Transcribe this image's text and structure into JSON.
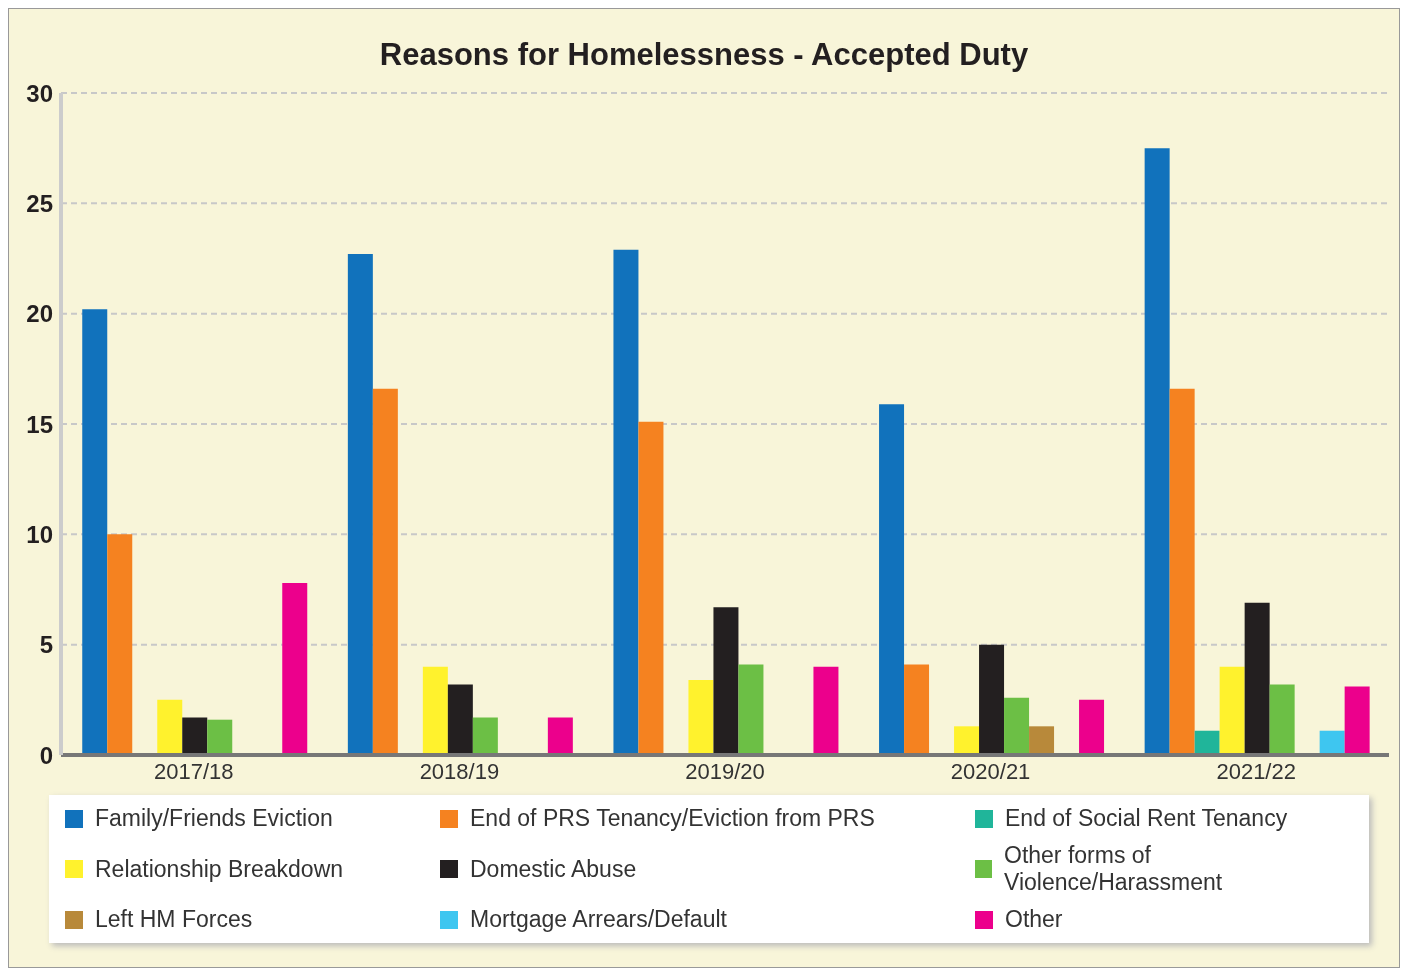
{
  "chart_data": {
    "type": "bar",
    "title": "Reasons for Homelessness - Accepted Duty",
    "categories": [
      "2017/18",
      "2018/19",
      "2019/20",
      "2020/21",
      "2021/22"
    ],
    "series": [
      {
        "name": "Family/Friends Eviction",
        "color": "#1172bc",
        "values": [
          20.2,
          22.7,
          22.9,
          15.9,
          27.5
        ]
      },
      {
        "name": "End of PRS Tenancy/Eviction from PRS",
        "color": "#f58220",
        "values": [
          10.0,
          16.6,
          15.1,
          4.1,
          16.6
        ]
      },
      {
        "name": "End of Social Rent Tenancy",
        "color": "#20b59a",
        "values": [
          null,
          null,
          null,
          null,
          1.1
        ]
      },
      {
        "name": "Relationship Breakdown",
        "color": "#fff22d",
        "values": [
          2.5,
          4.0,
          3.4,
          1.3,
          4.0
        ]
      },
      {
        "name": "Domestic Abuse",
        "color": "#231f20",
        "values": [
          1.7,
          3.2,
          6.7,
          5.0,
          6.9
        ]
      },
      {
        "name": "Other forms of Violence/Harassment",
        "color": "#6cbf45",
        "values": [
          1.6,
          1.7,
          4.1,
          2.6,
          3.2
        ]
      },
      {
        "name": "Left HM Forces",
        "color": "#b8893a",
        "values": [
          null,
          null,
          null,
          1.3,
          null
        ]
      },
      {
        "name": "Mortgage Arrears/Default",
        "color": "#3ec6f0",
        "values": [
          null,
          null,
          null,
          null,
          1.1
        ]
      },
      {
        "name": "Other",
        "color": "#ec008c",
        "values": [
          7.8,
          1.7,
          4.0,
          2.5,
          3.1
        ]
      }
    ],
    "ylim": [
      0,
      30
    ],
    "yticks": [
      0,
      5,
      10,
      15,
      20,
      25,
      30
    ],
    "grid": "y",
    "legend": "bottom"
  }
}
